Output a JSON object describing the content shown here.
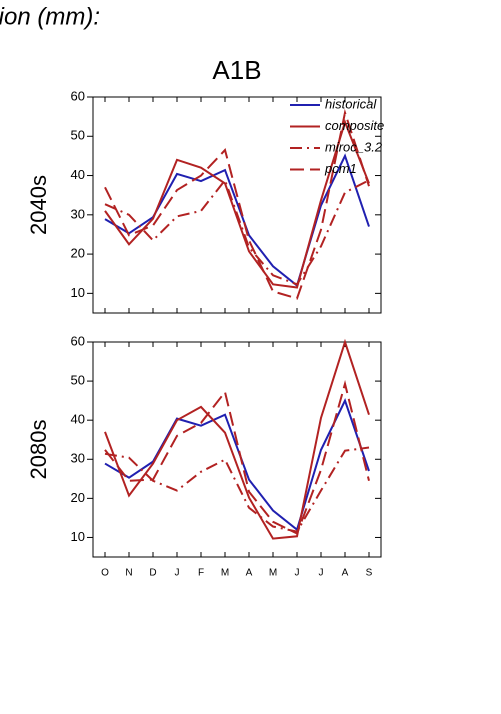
{
  "header": {
    "text": "tion (mm):"
  },
  "chart_data": [
    {
      "type": "line",
      "title": "A1B",
      "ylabel": "2040s",
      "ylim": [
        5,
        60
      ],
      "yticks": [
        10,
        20,
        30,
        40,
        50,
        60
      ],
      "legend": "upper right",
      "series": [
        {
          "name": "historical",
          "color": "#2020b0",
          "dash": "none",
          "values": [
            28.9,
            25.3,
            29.4,
            40.4,
            38.6,
            41.4,
            24.8,
            16.9,
            12.0,
            32.4,
            45.0,
            27.0
          ]
        },
        {
          "name": "composite",
          "color": "#b22222",
          "dash": "none",
          "values": [
            31.0,
            22.5,
            29.0,
            44.0,
            42.0,
            38.0,
            20.7,
            12.3,
            11.5,
            33.7,
            53.6,
            38.0
          ]
        },
        {
          "name": "miroc_3.2",
          "color": "#b22222",
          "dash": "12,5,2,5",
          "values": [
            32.7,
            30.0,
            23.5,
            29.6,
            31.0,
            38.8,
            21.7,
            14.6,
            12.3,
            22.0,
            35.7,
            38.8
          ]
        },
        {
          "name": "pcm1",
          "color": "#b22222",
          "dash": "14,6",
          "values": [
            37.0,
            24.8,
            27.3,
            36.3,
            40.0,
            46.5,
            23.5,
            10.5,
            8.7,
            26.2,
            56.0,
            37.3
          ]
        }
      ]
    },
    {
      "type": "line",
      "ylabel": "2080s",
      "categories": [
        "O",
        "N",
        "D",
        "J",
        "F",
        "M",
        "A",
        "M",
        "J",
        "J",
        "A",
        "S"
      ],
      "ylim": [
        5,
        60
      ],
      "yticks": [
        10,
        20,
        30,
        40,
        50,
        60
      ],
      "series": [
        {
          "color": "#2020b0",
          "dash": "none",
          "values": [
            28.9,
            25.3,
            29.4,
            40.4,
            38.6,
            41.4,
            24.8,
            16.9,
            12.0,
            32.4,
            45.0,
            27.0
          ]
        },
        {
          "color": "#b22222",
          "dash": "none",
          "values": [
            37.0,
            20.7,
            28.9,
            40.0,
            43.4,
            36.8,
            20.2,
            9.7,
            10.3,
            40.6,
            60.0,
            41.4
          ]
        },
        {
          "color": "#b22222",
          "dash": "12,5,2,5",
          "values": [
            31.4,
            30.4,
            24.5,
            22.0,
            26.8,
            29.9,
            17.6,
            12.8,
            11.5,
            22.0,
            32.2,
            33.0
          ]
        },
        {
          "color": "#b22222",
          "dash": "14,6",
          "values": [
            32.4,
            24.5,
            24.8,
            36.0,
            39.3,
            47.2,
            21.7,
            14.0,
            11.0,
            27.3,
            49.3,
            24.5
          ]
        }
      ]
    }
  ]
}
